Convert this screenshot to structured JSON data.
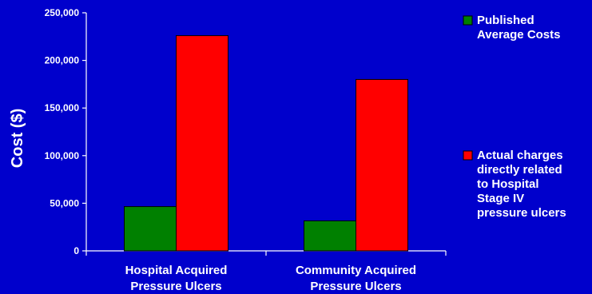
{
  "chart_data": {
    "type": "bar",
    "title": "",
    "xlabel": "",
    "ylabel": "Cost ($)",
    "ylim": [
      0,
      250000
    ],
    "yticks": [
      "0",
      "50,000",
      "100,000",
      "150,000",
      "200,000",
      "250,000"
    ],
    "ytick_values": [
      0,
      50000,
      100000,
      150000,
      200000,
      250000
    ],
    "categories": [
      [
        "Hospital Acquired",
        "Pressure Ulcers"
      ],
      [
        "Community Acquired",
        "Pressure Ulcers"
      ]
    ],
    "series": [
      {
        "name": [
          "Published",
          "Average Costs"
        ],
        "color": "#008000",
        "values": [
          46500,
          31500
        ]
      },
      {
        "name": [
          "Actual charges",
          "directly related",
          "to Hospital",
          "Stage IV",
          "pressure ulcers"
        ],
        "color": "#FF0000",
        "values": [
          226000,
          180000
        ]
      }
    ],
    "legend_position": "right",
    "grid": false
  },
  "colors": {
    "background": "#0000CC",
    "text": "#FFFFFF",
    "axis": "#FFFFFF"
  }
}
